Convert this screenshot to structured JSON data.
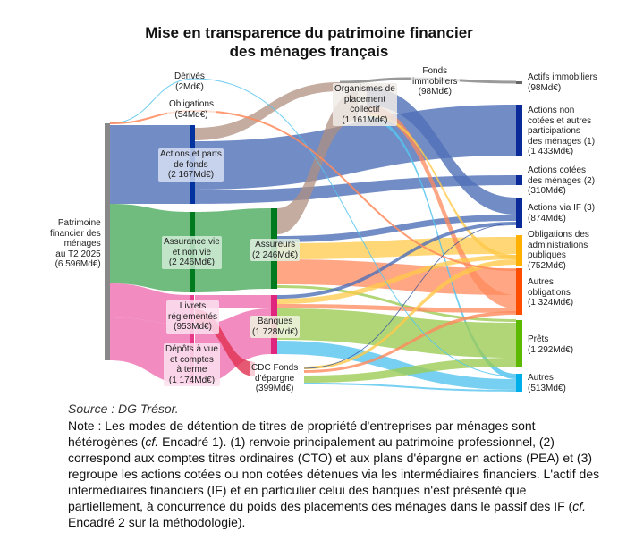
{
  "title": [
    "Mise en transparence du patrimoine financier",
    "des ménages français"
  ],
  "nodes": {
    "source": [
      "Patrimoine",
      "financier des",
      "ménages",
      "au T2 2025",
      "(6 596Md€)"
    ],
    "derives": [
      "Dérivés",
      "(2Md€)"
    ],
    "obligations": [
      "Obligations",
      "(54Md€)"
    ],
    "actions_parts": [
      "Actions et parts",
      "de fonds",
      "(2 167Md€)"
    ],
    "assurance": [
      "Assurance vie",
      "et non vie",
      "(2 246Md€)"
    ],
    "livrets": [
      "Livrets",
      "réglementés",
      "(953Md€)"
    ],
    "depots": [
      "Dépôts à vue",
      "et comptes",
      "à terme",
      "(1 174Md€)"
    ],
    "assureurs": [
      "Assureurs",
      "(2 246Md€)"
    ],
    "banques": [
      "Banques",
      "(1 728Md€)"
    ],
    "cdc": [
      "CDC Fonds",
      "d'épargne",
      "(399Md€)"
    ],
    "opc": [
      "Organismes de",
      "placement",
      "collectif",
      "(1 161Md€)"
    ],
    "fonds_immo": [
      "Fonds",
      "immobiliers",
      "(98Md€)"
    ],
    "actifs_immo": [
      "Actifs immobiliers",
      "(98Md€)"
    ],
    "actions_non_cotees": [
      "Actions non",
      "cotées et autres",
      "participations",
      "des ménages (1)",
      "(1 433Md€)"
    ],
    "actions_cotees": [
      "Actions cotées",
      "des ménages (2)",
      "(310Md€)"
    ],
    "actions_if": [
      "Actions via IF (3)",
      "(874Md€)"
    ],
    "oblig_admin": [
      "Obligations des",
      "administrations",
      "publiques",
      "(752Md€)"
    ],
    "autres_oblig": [
      "Autres",
      "obligations",
      "(1 324Md€)"
    ],
    "prets": [
      "Prêts",
      "(1 292Md€)"
    ],
    "autres": [
      "Autres",
      "(513Md€)"
    ]
  },
  "source_text": "Source : DG Trésor.",
  "note": {
    "a": "Note : Les modes de détention de titres de propriété d'entreprises par ménages sont hétérogènes (",
    "cf1": "cf.",
    "b": " Encadré 1). (1) renvoie principalement au patrimoine professionnel, (2) correspond aux comptes titres ordinaires (CTO) et aux plans d'épargne en actions (PEA) et (3) regroupe les actions cotées ou non cotées détenues via les intermédiaires financiers. L'actif des intermédiaires financiers (IF) et en particulier celui des banques n'est présenté que partiellement, à concurrence du poids des placements des ménages dans le passif des IF (",
    "cf2": "cf.",
    "c": " Encadré 2 sur la méthodologie)."
  },
  "colors": {
    "blue": "#4f6fb8",
    "green": "#4caa5e",
    "pink": "#ef6fb0",
    "brown": "#b09080",
    "yellow": "#ffc94a",
    "orange": "#ff8a5c",
    "lightgreen": "#9ccc55",
    "lightblue": "#55c4ee",
    "red": "#e03050",
    "gray": "#888888"
  }
}
